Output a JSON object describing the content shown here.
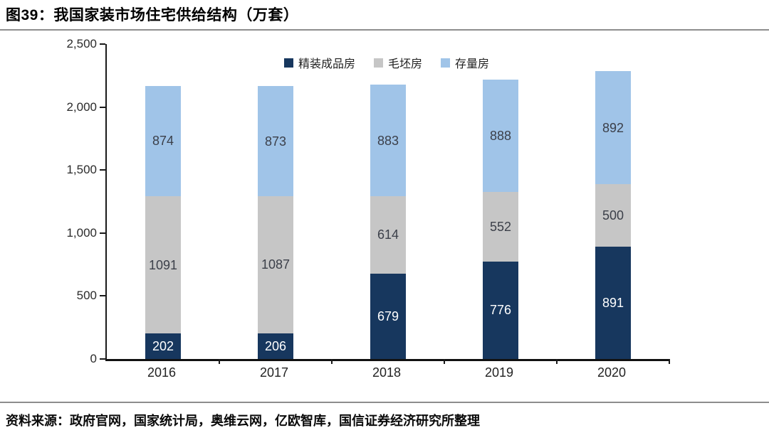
{
  "figure": {
    "title": "图39：我国家装市场住宅供给结构（万套）"
  },
  "source": {
    "text": "资料来源：政府官网，国家统计局，奥维云网，亿欧智库，国信证券经济研究所整理"
  },
  "chart_data": {
    "type": "bar",
    "stacked": true,
    "title": "我国家装市场住宅供给结构（万套）",
    "xlabel": "",
    "ylabel": "",
    "ylim": [
      0,
      2500
    ],
    "yticks": [
      0,
      500,
      1000,
      1500,
      2000,
      2500
    ],
    "ytick_labels": [
      "0",
      "500",
      "1,000",
      "1,500",
      "2,000",
      "2,500"
    ],
    "grid": false,
    "legend_position": "top-center",
    "categories": [
      "2016",
      "2017",
      "2018",
      "2019",
      "2020"
    ],
    "series": [
      {
        "name": "精装成品房",
        "color": "#17375E",
        "label_color": "#FFFFFF",
        "values": [
          202,
          206,
          679,
          776,
          891
        ]
      },
      {
        "name": "毛坯房",
        "color": "#C6C6C6",
        "label_color": "#3B3F49",
        "values": [
          1091,
          1087,
          614,
          552,
          500
        ]
      },
      {
        "name": "存量房",
        "color": "#A0C4E8",
        "label_color": "#3B3F49",
        "values": [
          874,
          873,
          883,
          888,
          892
        ]
      }
    ]
  }
}
